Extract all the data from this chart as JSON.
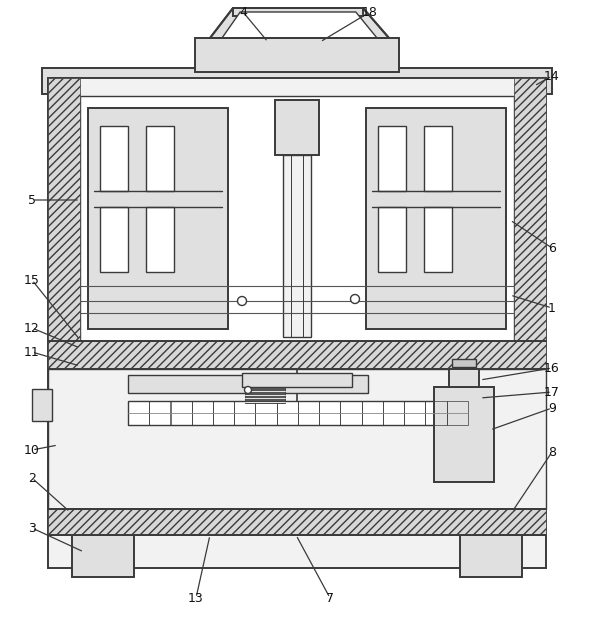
{
  "fig_width": 5.94,
  "fig_height": 6.19,
  "bg_color": "#ffffff",
  "line_color": "#3a3a3a",
  "fill_light": "#f2f2f2",
  "fill_mid": "#e0e0e0",
  "fill_dark": "#c8c8c8",
  "hatch_fill": "#d8d8d8"
}
